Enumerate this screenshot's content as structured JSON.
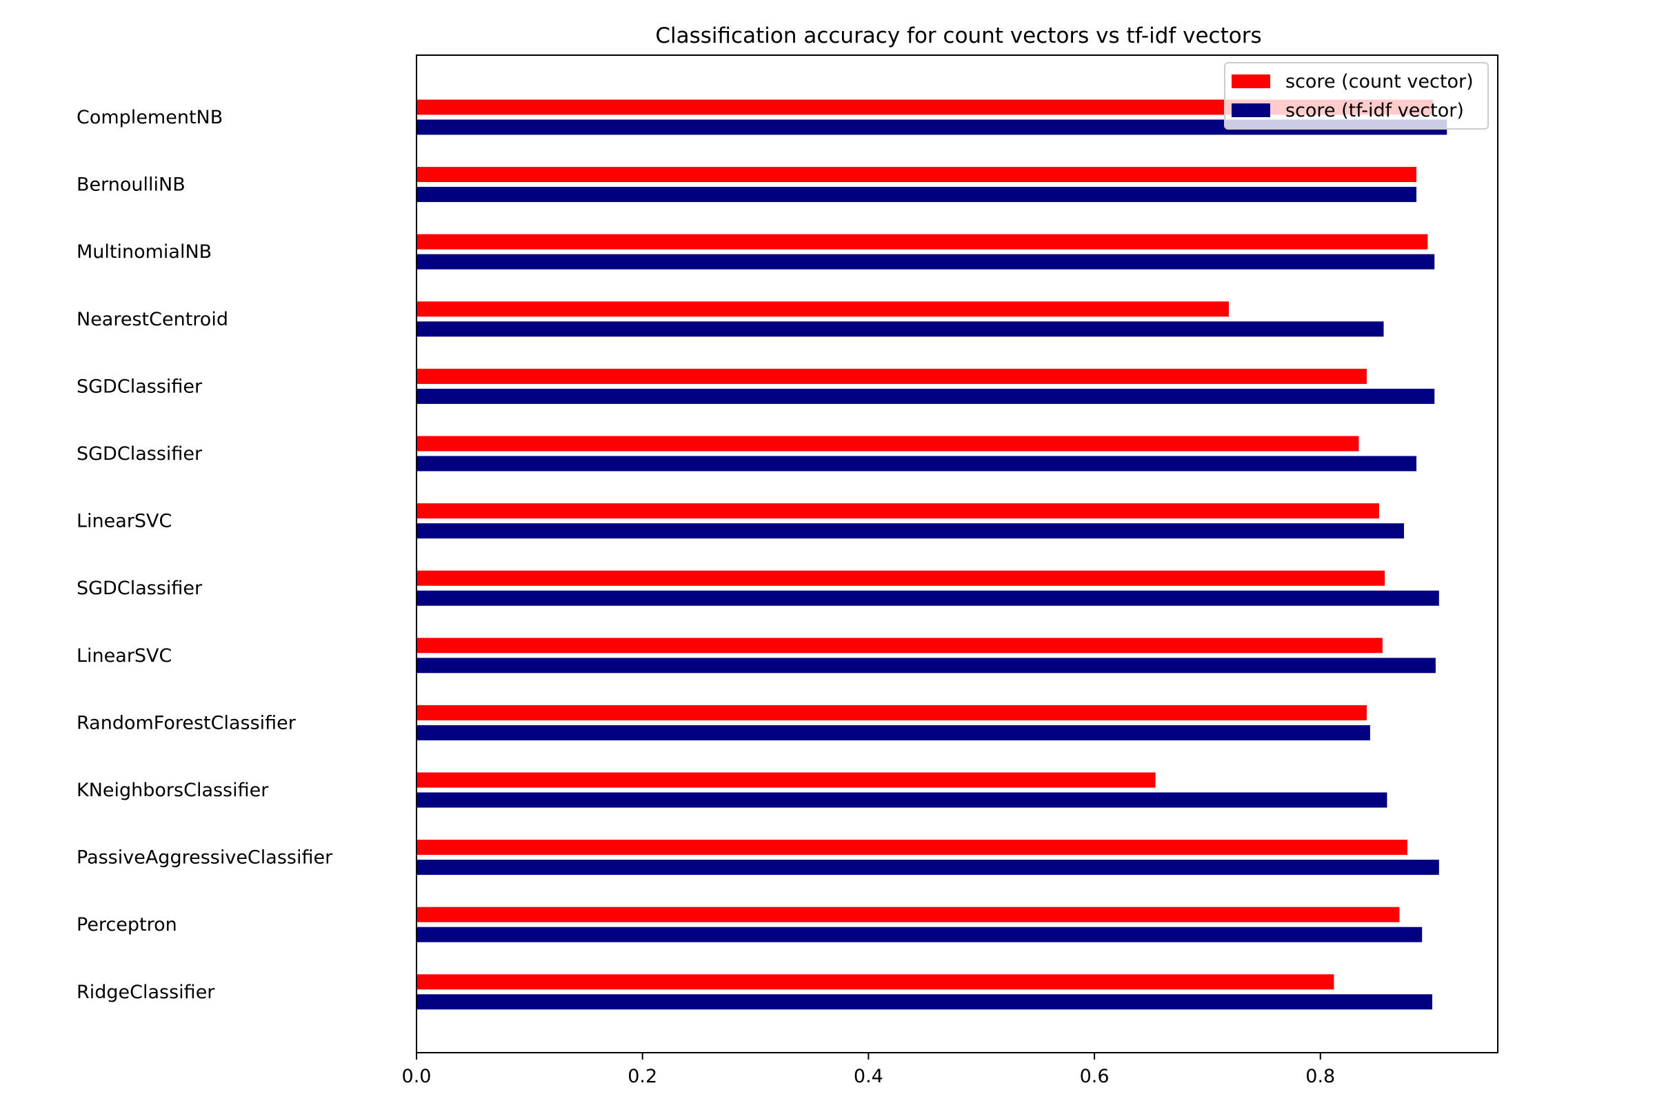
{
  "chart_data": {
    "type": "bar",
    "orientation": "horizontal",
    "title": "Classification accuracy for count vectors vs tf-idf vectors",
    "categories": [
      "ComplementNB",
      "BernoulliNB",
      "MultinomialNB",
      "NearestCentroid",
      "SGDClassifier",
      "SGDClassifier",
      "LinearSVC",
      "SGDClassifier",
      "LinearSVC",
      "RandomForestClassifier",
      "KNeighborsClassifier",
      "PassiveAggressiveClassifier",
      "Perceptron",
      "RidgeClassifier"
    ],
    "series": [
      {
        "name": "score (count vector)",
        "color": "#ff0000",
        "values": [
          0.9,
          0.885,
          0.895,
          0.719,
          0.841,
          0.834,
          0.852,
          0.857,
          0.855,
          0.841,
          0.654,
          0.877,
          0.87,
          0.812
        ]
      },
      {
        "name": "score (tf-idf vector)",
        "color": "#000080",
        "values": [
          0.912,
          0.885,
          0.901,
          0.856,
          0.901,
          0.885,
          0.874,
          0.905,
          0.902,
          0.844,
          0.859,
          0.905,
          0.89,
          0.899
        ]
      }
    ],
    "xlim": [
      0,
      0.957
    ],
    "xticks": [
      "0.0",
      "0.2",
      "0.4",
      "0.6",
      "0.8"
    ],
    "xtick_values": [
      0.0,
      0.2,
      0.4,
      0.6,
      0.8
    ],
    "xlabel": "",
    "ylabel": "",
    "grid": false,
    "legend_position": "top-right"
  }
}
